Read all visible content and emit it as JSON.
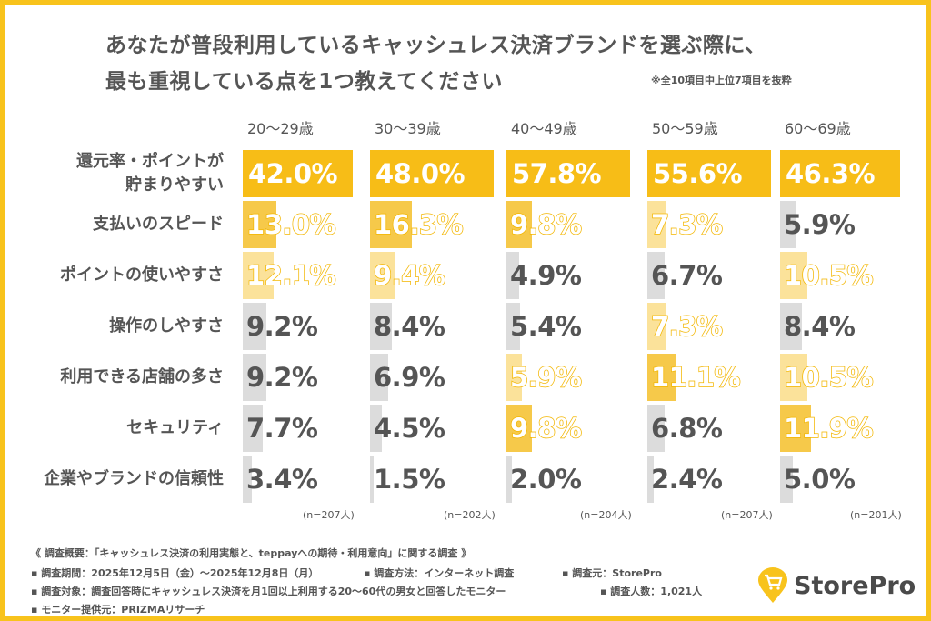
{
  "title_line1": "あなたが普段利用しているキャッシュレス決済ブランドを選ぶ際に、",
  "title_line2": "最も重視している点を1つ教えてください",
  "note": "※全10項目中上位7項目を抜粋",
  "colors": {
    "frame": "#f8c31c",
    "top": "#f7bd17",
    "second": "#f6c94a",
    "third": "#fbe29a",
    "other": "#dcdcdc",
    "text": "#555555"
  },
  "chart_data": {
    "type": "bar",
    "categories": [
      "還元率・ポイントが\n貯まりやすい",
      "支払いのスピード",
      "ポイントの使いやすさ",
      "操作のしやすさ",
      "利用できる店舗の多さ",
      "セキュリティ",
      "企業やブランドの信頼性"
    ],
    "series": [
      {
        "name": "20～29歳",
        "n": "(n=207人)",
        "values": [
          42.0,
          13.0,
          12.1,
          9.2,
          9.2,
          7.7,
          3.4
        ]
      },
      {
        "name": "30～39歳",
        "n": "(n=202人)",
        "values": [
          48.0,
          16.3,
          9.4,
          8.4,
          6.9,
          4.5,
          1.5
        ]
      },
      {
        "name": "40～49歳",
        "n": "(n=204人)",
        "values": [
          57.8,
          9.8,
          4.9,
          5.4,
          5.9,
          9.8,
          2.0
        ]
      },
      {
        "name": "50～59歳",
        "n": "(n=207人)",
        "values": [
          55.6,
          7.3,
          6.7,
          7.3,
          11.1,
          6.8,
          2.4
        ]
      },
      {
        "name": "60～69歳",
        "n": "(n=201人)",
        "values": [
          46.3,
          5.9,
          10.5,
          8.4,
          10.5,
          11.9,
          5.0
        ]
      }
    ],
    "unit": "%"
  },
  "footer": {
    "overview": "《 調査概要：「キャッシュレス決済の利用実態と、teppayへの期待・利用意向」に関する調査 》",
    "period": "▪ 調査期間：2025年12月5日（金）～2025年12月8日（月）",
    "method": "▪ 調査方法：インターネット調査",
    "source": "▪ 調査元：StorePro",
    "target": "▪ 調査対象：調査回答時にキャッシュレス決済を月1回以上利用する20～60代の男女と回答したモニター",
    "count": "▪ 調査人数：1,021人",
    "provider": "▪ モニター提供元：PRIZMAリサーチ"
  },
  "logo": {
    "text": "StorePro",
    "icon": "shopping-cart-pin-icon"
  }
}
